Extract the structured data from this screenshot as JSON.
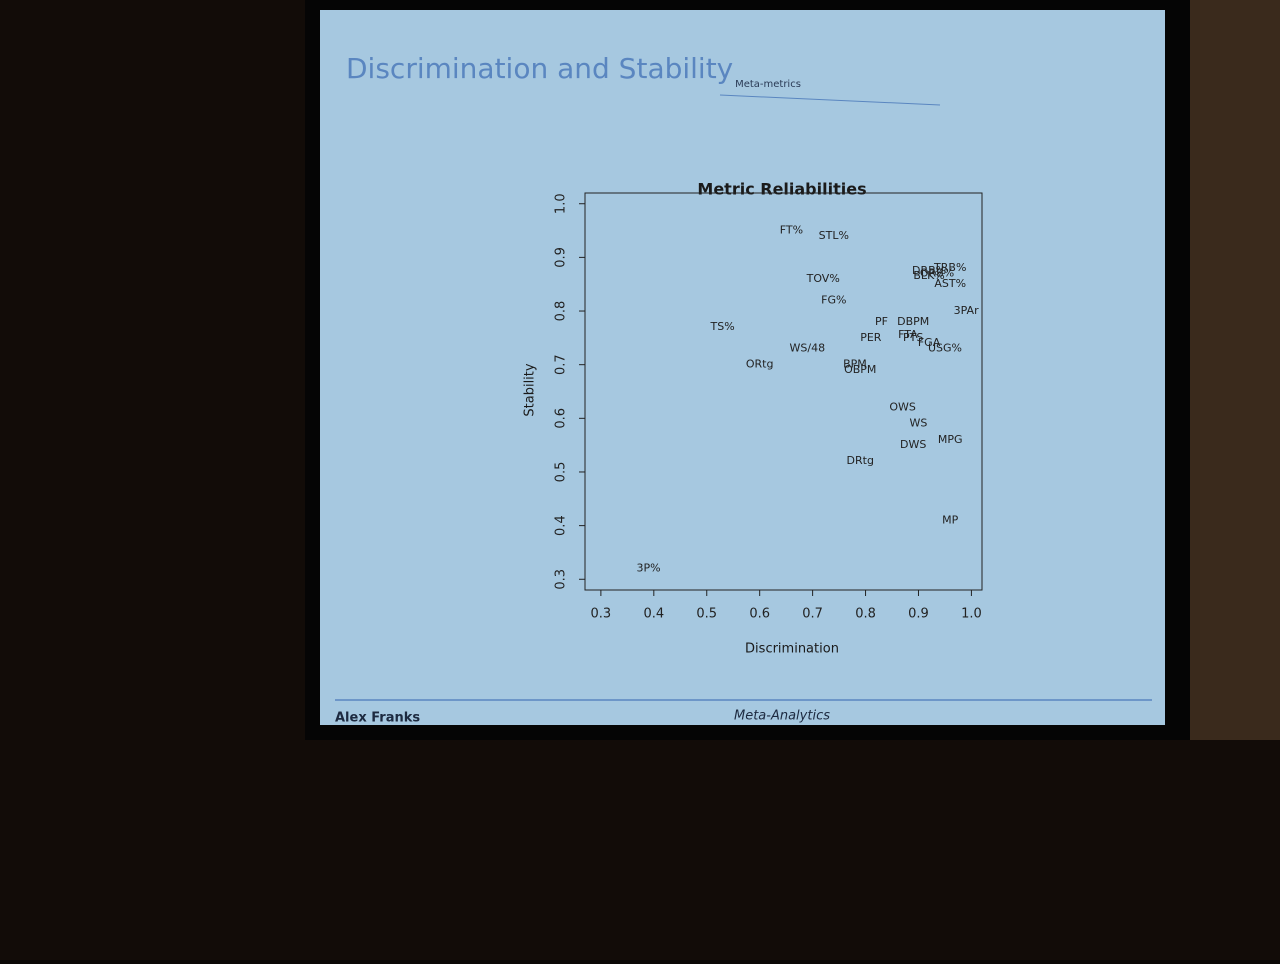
{
  "slide": {
    "title": "Discrimination and Stability",
    "header": "Meta-metrics",
    "author": "Alex Franks",
    "footer_title": "Meta-Analytics"
  },
  "chart_data": {
    "type": "scatter",
    "title": "Metric Reliabilities",
    "xlabel": "Discrimination",
    "ylabel": "Stability",
    "labels": [
      "FT%",
      "STL%",
      "TRB%",
      "DRB%",
      "ORB%",
      "BLK%",
      "AST%",
      "TOV%",
      "FG%",
      "3PAr",
      "PF",
      "DBPM",
      "TS%",
      "PER",
      "FTA",
      "PTS",
      "FGA",
      "USG%",
      "WS/48",
      "ORtg",
      "BPM",
      "OBPM",
      "OWS",
      "WS",
      "MPG",
      "DWS",
      "DRtg",
      "MP",
      "3P%"
    ],
    "x": [
      0.66,
      0.74,
      0.96,
      0.92,
      0.935,
      0.92,
      0.96,
      0.72,
      0.74,
      0.99,
      0.83,
      0.89,
      0.53,
      0.81,
      0.88,
      0.89,
      0.92,
      0.95,
      0.69,
      0.6,
      0.78,
      0.79,
      0.87,
      0.9,
      0.96,
      0.89,
      0.79,
      0.96,
      0.39
    ],
    "values": [
      0.95,
      0.94,
      0.88,
      0.875,
      0.87,
      0.865,
      0.85,
      0.86,
      0.82,
      0.8,
      0.78,
      0.78,
      0.77,
      0.75,
      0.755,
      0.75,
      0.74,
      0.73,
      0.73,
      0.7,
      0.7,
      0.69,
      0.62,
      0.59,
      0.56,
      0.55,
      0.52,
      0.41,
      0.32
    ],
    "xlim": [
      0.27,
      1.02
    ],
    "ylim": [
      0.28,
      1.02
    ],
    "xticks": [
      0.3,
      0.4,
      0.5,
      0.6,
      0.7,
      0.8,
      0.9,
      {
        "value": 1,
        "label": "1.0"
      }
    ],
    "yticks": [
      0.3,
      0.4,
      0.5,
      0.6,
      0.7,
      0.8,
      0.9,
      {
        "value": 1,
        "label": "1.0"
      }
    ]
  }
}
